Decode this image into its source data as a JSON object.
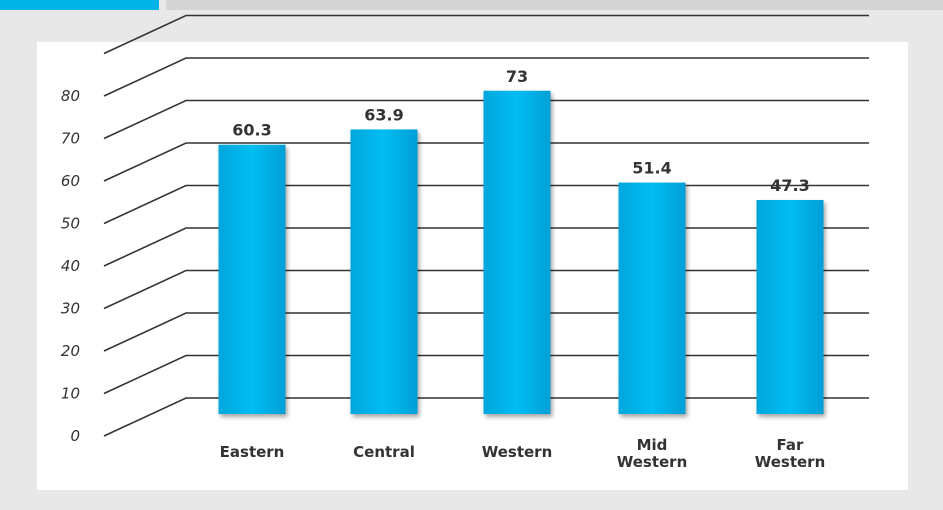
{
  "chart_data": {
    "type": "bar",
    "title": "",
    "xlabel": "",
    "ylabel": "",
    "categories": [
      "Eastern",
      "Central",
      "Western",
      "Mid Western",
      "Far Western"
    ],
    "values": [
      60.3,
      63.9,
      73,
      51.4,
      47.3
    ],
    "value_labels": [
      "60.3",
      "63.9",
      "73",
      "51.4",
      "47.3"
    ],
    "yticks": [
      "0",
      "10",
      "20",
      "30",
      "40",
      "50",
      "60",
      "70",
      "80"
    ],
    "ylim": [
      0,
      80
    ],
    "grid": true,
    "style": "3d",
    "bar_color": "#00b9ef"
  }
}
